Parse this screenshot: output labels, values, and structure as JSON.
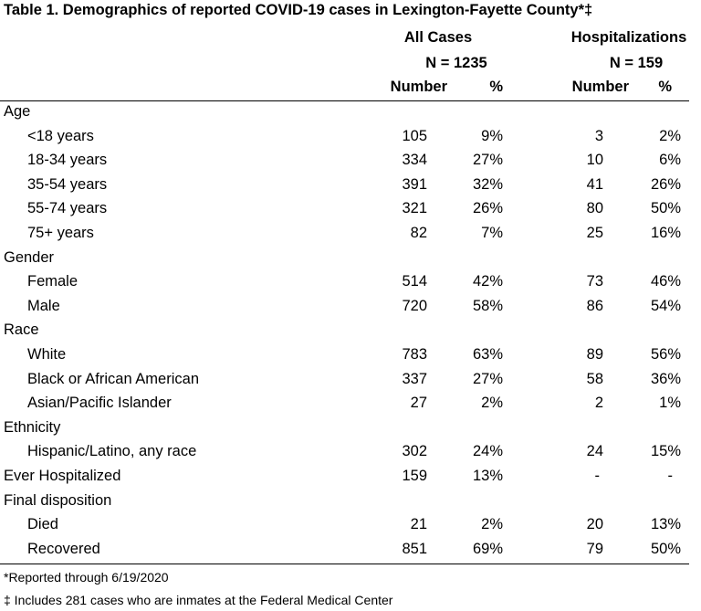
{
  "title": "Table 1. Demographics of reported COVID-19 cases in Lexington-Fayette County*‡",
  "groups": {
    "all": {
      "label": "All Cases",
      "n": "N = 1235"
    },
    "hosp": {
      "label": "Hospitalizations",
      "n": "N = 159"
    }
  },
  "columns": {
    "number": "Number",
    "pct": "%"
  },
  "rows": [
    {
      "label": "Age",
      "type": "category"
    },
    {
      "label": "<18 years",
      "type": "sub",
      "n1": "105",
      "p1": "9%",
      "n2": "3",
      "p2": "2%"
    },
    {
      "label": "18-34 years",
      "type": "sub",
      "n1": "334",
      "p1": "27%",
      "n2": "10",
      "p2": "6%"
    },
    {
      "label": "35-54 years",
      "type": "sub",
      "n1": "391",
      "p1": "32%",
      "n2": "41",
      "p2": "26%"
    },
    {
      "label": "55-74 years",
      "type": "sub",
      "n1": "321",
      "p1": "26%",
      "n2": "80",
      "p2": "50%"
    },
    {
      "label": "75+ years",
      "type": "sub",
      "n1": "82",
      "p1": "7%",
      "n2": "25",
      "p2": "16%"
    },
    {
      "label": "Gender",
      "type": "category"
    },
    {
      "label": "Female",
      "type": "sub",
      "n1": "514",
      "p1": "42%",
      "n2": "73",
      "p2": "46%"
    },
    {
      "label": "Male",
      "type": "sub",
      "n1": "720",
      "p1": "58%",
      "n2": "86",
      "p2": "54%"
    },
    {
      "label": "Race",
      "type": "category"
    },
    {
      "label": "White",
      "type": "sub",
      "n1": "783",
      "p1": "63%",
      "n2": "89",
      "p2": "56%"
    },
    {
      "label": "Black or African American",
      "type": "sub",
      "n1": "337",
      "p1": "27%",
      "n2": "58",
      "p2": "36%"
    },
    {
      "label": "Asian/Pacific Islander",
      "type": "sub",
      "n1": "27",
      "p1": "2%",
      "n2": "2",
      "p2": "1%"
    },
    {
      "label": "Ethnicity",
      "type": "category"
    },
    {
      "label": "Hispanic/Latino, any race",
      "type": "sub",
      "n1": "302",
      "p1": "24%",
      "n2": "24",
      "p2": "15%"
    },
    {
      "label": "Ever Hospitalized",
      "type": "category",
      "n1": "159",
      "p1": "13%",
      "n2": "-",
      "p2": "-"
    },
    {
      "label": "Final disposition",
      "type": "category"
    },
    {
      "label": "Died",
      "type": "sub",
      "n1": "21",
      "p1": "2%",
      "n2": "20",
      "p2": "13%"
    },
    {
      "label": "Recovered",
      "type": "sub",
      "n1": "851",
      "p1": "69%",
      "n2": "79",
      "p2": "50%"
    }
  ],
  "footnotes": [
    "*Reported through 6/19/2020",
    "‡ Includes 281 cases who are inmates at the Federal Medical Center"
  ]
}
